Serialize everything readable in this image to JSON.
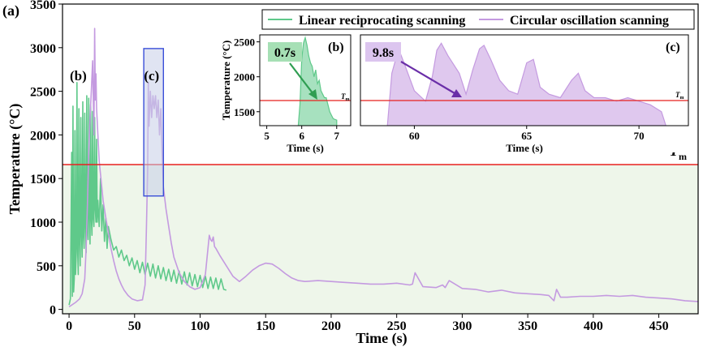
{
  "panel_label": "(a)",
  "chart_data": [
    {
      "id": "main",
      "type": "line",
      "xlabel": "Time (s)",
      "ylabel": "Temperature (°C)",
      "xlim": [
        -5,
        480
      ],
      "ylim": [
        -50,
        3500
      ],
      "xticks": [
        0,
        50,
        100,
        150,
        200,
        250,
        300,
        350,
        400,
        450
      ],
      "yticks": [
        0,
        500,
        1000,
        1500,
        2000,
        2500,
        3000,
        3500
      ],
      "grid": false,
      "legend_position": "top-right",
      "threshold": {
        "label": "T",
        "subscript": "m",
        "value": 1660,
        "color": "#e8211f"
      },
      "region_below_threshold_color": "#eef6ea",
      "markers": [
        {
          "label": "(b)",
          "x": 7,
          "y": 3200
        },
        {
          "label": "(c)",
          "x": 63,
          "y": 3200
        }
      ],
      "zoom_box": {
        "x": [
          57,
          72
        ],
        "y": [
          1300,
          2990
        ],
        "color": "#3a4fd8"
      },
      "series": [
        {
          "name": "Linear reciprocating scanning",
          "color": "#5fc98a",
          "x": [
            0,
            1,
            2,
            2.5,
            3,
            3.5,
            4,
            4.5,
            5,
            5.5,
            6,
            6.5,
            7,
            7.5,
            8,
            8.5,
            9,
            9.5,
            10,
            10.5,
            11,
            11.5,
            12,
            12.5,
            13,
            13.5,
            14,
            14.5,
            15,
            15.5,
            16,
            16.5,
            17,
            17.5,
            18,
            18.5,
            19,
            19.5,
            20,
            20.5,
            21,
            21.5,
            22,
            23,
            24,
            25,
            26,
            27,
            28,
            29,
            30,
            32,
            34,
            36,
            38,
            40,
            42,
            44,
            46,
            48,
            50,
            52,
            54,
            56,
            58,
            60,
            62,
            64,
            66,
            68,
            70,
            72,
            74,
            76,
            78,
            80,
            82,
            84,
            86,
            88,
            90,
            92,
            94,
            96,
            98,
            100,
            102,
            104,
            106,
            108,
            110,
            112,
            114,
            116,
            118,
            120
          ],
          "values": [
            50,
            120,
            1800,
            150,
            2330,
            200,
            350,
            2050,
            400,
            650,
            2600,
            700,
            400,
            2300,
            800,
            500,
            2200,
            900,
            600,
            2380,
            850,
            700,
            2250,
            950,
            650,
            2450,
            1000,
            800,
            2420,
            1100,
            750,
            2350,
            1050,
            850,
            2270,
            1050,
            950,
            2200,
            1150,
            1000,
            1950,
            1000,
            1250,
            950,
            1500,
            900,
            1200,
            780,
            1050,
            700,
            950,
            800,
            680,
            720,
            600,
            680,
            560,
            620,
            500,
            590,
            460,
            560,
            420,
            540,
            400,
            530,
            380,
            520,
            360,
            500,
            350,
            480,
            330,
            460,
            320,
            450,
            300,
            440,
            290,
            430,
            280,
            420,
            270,
            400,
            260,
            390,
            250,
            380,
            240,
            370,
            240,
            360,
            230,
            350,
            230,
            220
          ]
        },
        {
          "name": "Circular oscillation scanning",
          "color": "#c49ae0",
          "x": [
            0,
            5,
            8,
            10,
            12,
            13,
            14,
            15,
            16,
            17,
            18,
            19,
            19.5,
            20,
            20.5,
            21,
            22,
            23,
            24,
            25,
            26,
            28,
            30,
            32,
            34,
            36,
            38,
            40,
            42,
            45,
            48,
            52,
            56,
            58,
            59,
            60,
            60.5,
            61,
            62,
            63,
            64,
            65,
            66,
            67,
            68,
            69,
            70,
            71,
            72,
            74,
            76,
            78,
            80,
            84,
            88,
            92,
            96,
            100,
            104,
            106,
            107,
            108,
            109,
            110,
            111,
            112,
            115,
            120,
            125,
            130,
            135,
            140,
            145,
            150,
            155,
            160,
            165,
            170,
            175,
            180,
            190,
            200,
            210,
            220,
            230,
            240,
            250,
            260,
            262,
            264,
            270,
            280,
            285,
            287,
            290,
            300,
            310,
            320,
            330,
            340,
            350,
            360,
            366,
            370,
            372,
            375,
            380,
            390,
            400,
            410,
            420,
            430,
            440,
            450,
            460,
            470,
            480
          ],
          "values": [
            30,
            80,
            120,
            180,
            350,
            700,
            1200,
            1800,
            2200,
            2500,
            2850,
            2000,
            3220,
            2400,
            2700,
            2300,
            2000,
            1700,
            1550,
            1400,
            1250,
            1050,
            880,
            700,
            560,
            440,
            350,
            280,
            220,
            160,
            120,
            100,
            110,
            280,
            900,
            1600,
            2600,
            2100,
            2500,
            2200,
            2450,
            2300,
            2450,
            2200,
            2400,
            2000,
            2300,
            1800,
            1400,
            1150,
            950,
            760,
            600,
            420,
            320,
            260,
            230,
            250,
            400,
            700,
            850,
            800,
            780,
            830,
            720,
            700,
            620,
            500,
            380,
            320,
            380,
            450,
            500,
            530,
            520,
            470,
            410,
            360,
            330,
            320,
            330,
            320,
            310,
            300,
            290,
            290,
            300,
            280,
            290,
            420,
            260,
            250,
            280,
            250,
            330,
            240,
            230,
            200,
            220,
            190,
            180,
            170,
            160,
            100,
            230,
            140,
            140,
            150,
            150,
            160,
            150,
            160,
            140,
            130,
            120,
            100,
            90
          ]
        }
      ]
    },
    {
      "id": "inset-b",
      "label": "(b)",
      "type": "area",
      "xlabel": "Time (s)",
      "ylabel": "Temperature (°C)",
      "xlim": [
        4.8,
        7.4
      ],
      "ylim": [
        1300,
        2600
      ],
      "xticks": [
        5,
        6,
        7
      ],
      "yticks": [
        1500,
        2000,
        2500
      ],
      "threshold": {
        "label": "T",
        "subscript": "m",
        "value": 1660
      },
      "annotation": "0.7s",
      "series": [
        {
          "name": "Linear reciprocating scanning",
          "color": "#5fc98a",
          "x": [
            5.9,
            5.95,
            6.0,
            6.05,
            6.1,
            6.15,
            6.2,
            6.25,
            6.3,
            6.35,
            6.4,
            6.45,
            6.5,
            6.55,
            6.6,
            6.65,
            6.7,
            6.75,
            6.8,
            6.85,
            6.9,
            7.0
          ],
          "values": [
            1300,
            1600,
            2250,
            2480,
            2560,
            2450,
            2300,
            2200,
            2150,
            2000,
            2100,
            1900,
            1950,
            1800,
            1750,
            1700,
            1700,
            1600,
            1500,
            1450,
            1400,
            1380
          ]
        }
      ]
    },
    {
      "id": "inset-c",
      "label": "(c)",
      "type": "area",
      "xlabel": "Time (s)",
      "ylabel": "",
      "xlim": [
        57.6,
        72.2
      ],
      "ylim": [
        1300,
        2600
      ],
      "xticks": [
        60,
        65,
        70
      ],
      "yticks": [],
      "threshold": {
        "label": "T",
        "subscript": "m",
        "value": 1660
      },
      "annotation": "9.8s",
      "series": [
        {
          "name": "Circular oscillation scanning",
          "color": "#c49ae0",
          "x": [
            58.8,
            59.0,
            59.3,
            59.6,
            60.0,
            60.5,
            60.8,
            61.0,
            61.2,
            61.5,
            62.0,
            62.3,
            62.6,
            62.9,
            63.1,
            63.4,
            63.8,
            64.2,
            64.6,
            65.0,
            65.3,
            65.6,
            66.0,
            66.5,
            67.0,
            67.3,
            67.6,
            68.0,
            68.5,
            69.0,
            69.5,
            70.0,
            70.5,
            71.0,
            71.2
          ],
          "values": [
            1300,
            2050,
            2400,
            2150,
            1800,
            1650,
            2000,
            2380,
            2480,
            2300,
            2050,
            1750,
            2100,
            2400,
            2450,
            2250,
            1950,
            1800,
            1750,
            2200,
            2250,
            1850,
            1750,
            1700,
            1950,
            2050,
            1800,
            1700,
            1700,
            1650,
            1700,
            1650,
            1600,
            1500,
            1300
          ]
        }
      ]
    }
  ]
}
